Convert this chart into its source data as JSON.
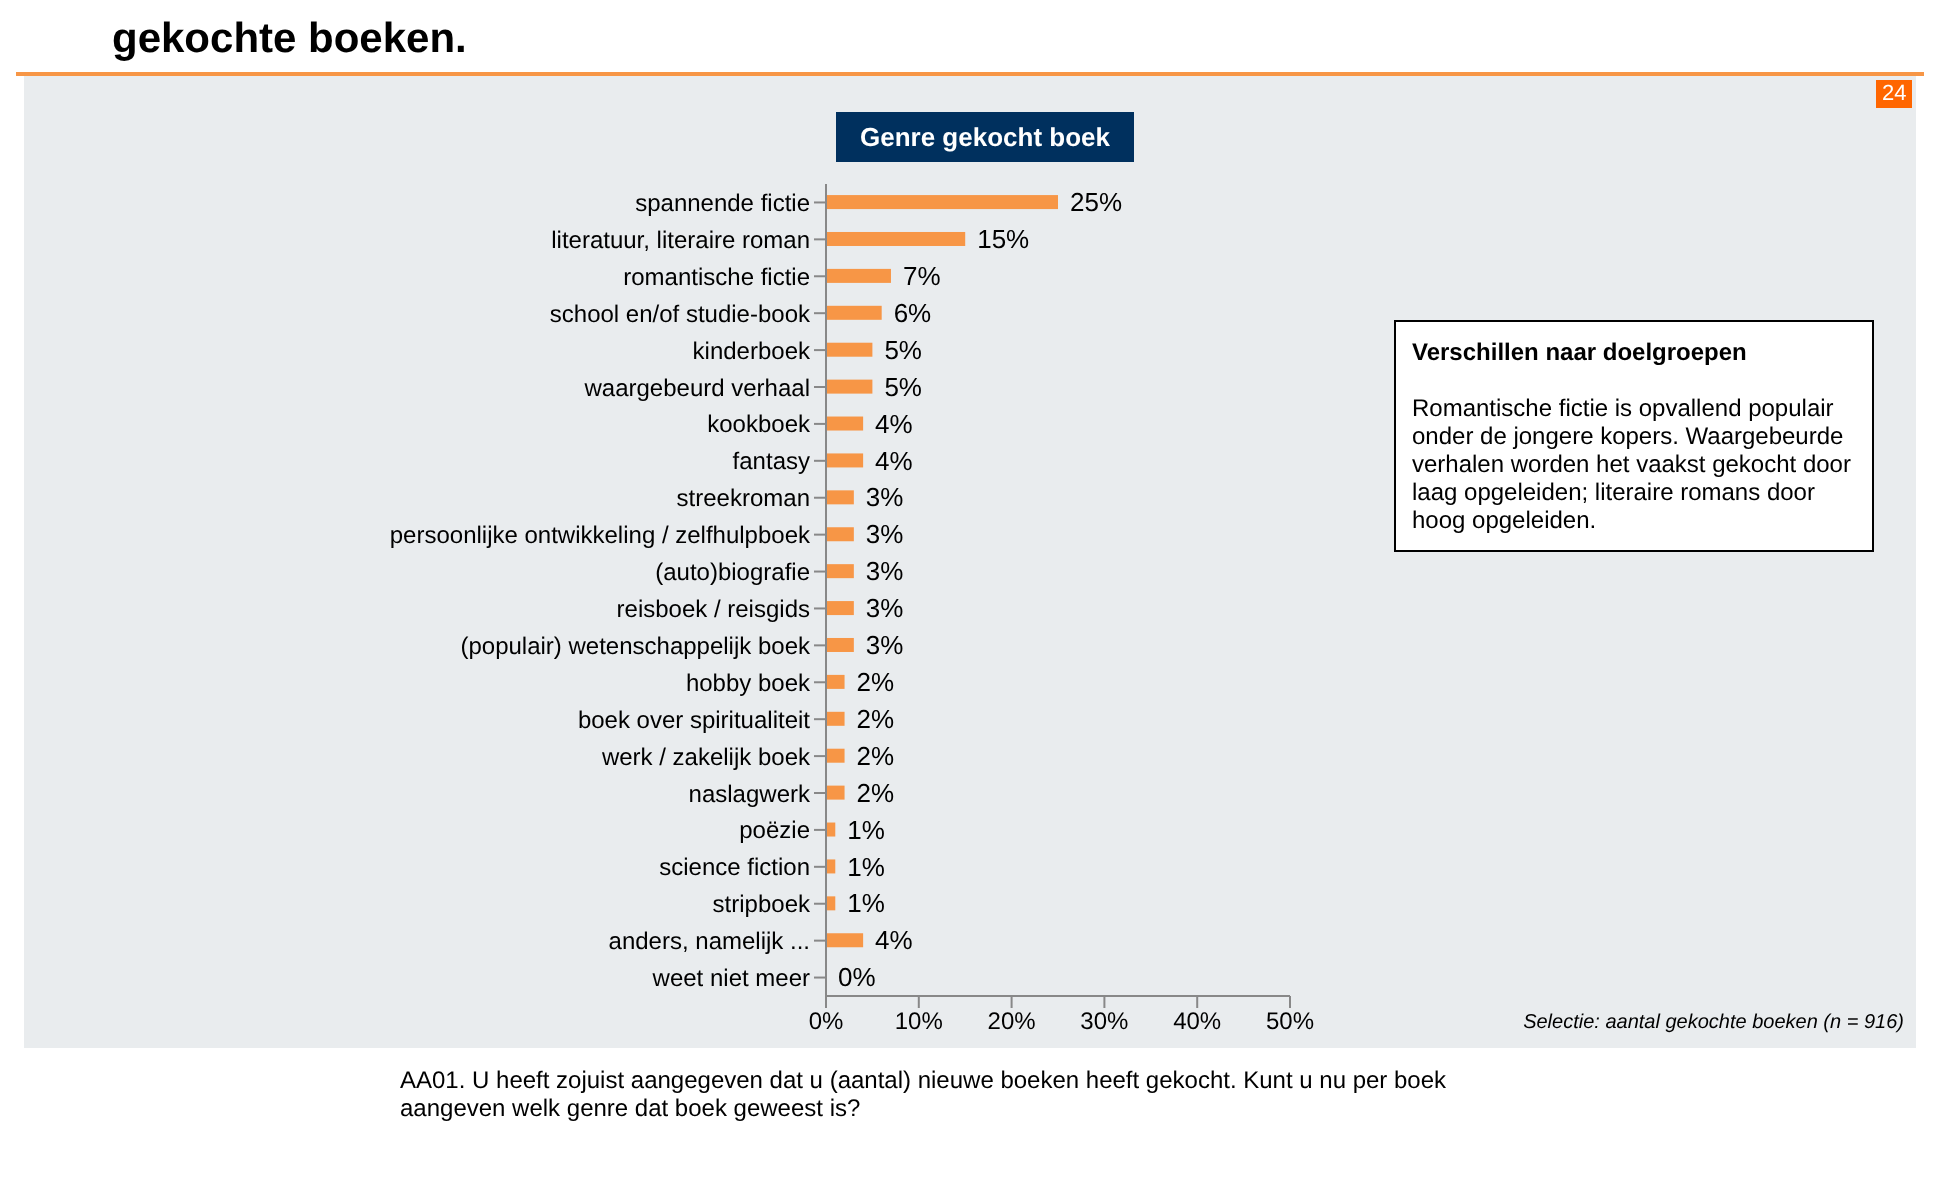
{
  "chart_data": {
    "type": "bar",
    "orientation": "horizontal",
    "title": "gekochte boeken.",
    "subtitle": "Genre gekocht boek",
    "categories": [
      "spannende fictie",
      "literatuur, literaire roman",
      "romantische fictie",
      "school en/of studie-book",
      "kinderboek",
      "waargebeurd verhaal",
      "kookboek",
      "fantasy",
      "streekroman",
      "persoonlijke ontwikkeling / zelfhulpboek",
      "(auto)biografie",
      "reisboek / reisgids",
      "(populair) wetenschappelijk boek",
      "hobby boek",
      "boek over spiritualiteit",
      "werk / zakelijk boek",
      "naslagwerk",
      "poëzie",
      "science fiction",
      "stripboek",
      "anders, namelijk ...",
      "weet niet meer"
    ],
    "values": [
      25,
      15,
      7,
      6,
      5,
      5,
      4,
      4,
      3,
      3,
      3,
      3,
      3,
      2,
      2,
      2,
      2,
      1,
      1,
      1,
      4,
      0
    ],
    "value_labels": [
      "25%",
      "15%",
      "7%",
      "6%",
      "5%",
      "5%",
      "4%",
      "4%",
      "3%",
      "3%",
      "3%",
      "3%",
      "3%",
      "2%",
      "2%",
      "2%",
      "2%",
      "1%",
      "1%",
      "1%",
      "4%",
      "0%"
    ],
    "color": "#f79646",
    "xlim": [
      0,
      50
    ],
    "xticks": [
      {
        "value": 0,
        "label": "0%"
      },
      {
        "value": 10,
        "label": "10%"
      },
      {
        "value": 20,
        "label": "20%"
      },
      {
        "value": 30,
        "label": "30%"
      },
      {
        "value": 40,
        "label": "40%"
      },
      {
        "value": 50,
        "label": "50%"
      }
    ],
    "annotations": [
      "24",
      "Verschillen naar doelgroepen",
      "Romantische fictie is opvallend populair onder de jongere kopers. Waargebeurde verhalen worden het vaakst gekocht door laag opgeleiden; literaire romans door hoog opgeleiden.",
      "Selectie: aantal gekochte boeken (n = 916)",
      "AA01. U heeft zojuist aangegeven dat u (aantal) nieuwe boeken heeft gekocht. Kunt u nu per boek aangeven welk genre dat boek geweest is?"
    ]
  }
}
